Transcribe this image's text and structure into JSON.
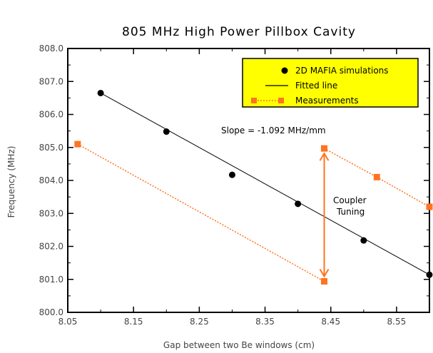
{
  "chart_data": {
    "type": "line",
    "title": "805 MHz High Power Pillbox Cavity",
    "xlabel": "Gap between two Be windows (cm)",
    "ylabel": "Frequency (MHz)",
    "xlim": [
      8.05,
      8.6
    ],
    "ylim": [
      800.0,
      808.0
    ],
    "xticks": [
      8.05,
      8.15,
      8.25,
      8.35,
      8.45,
      8.55
    ],
    "xtick_labels": [
      "8.05",
      "8.15",
      "8.25",
      "8.35",
      "8.45",
      "8.55"
    ],
    "yticks": [
      800,
      801,
      802,
      803,
      804,
      805,
      806,
      807,
      808
    ],
    "ytick_labels": [
      "800.0",
      "801.0",
      "802.0",
      "803.0",
      "804.0",
      "805.0",
      "806.0",
      "807.0",
      "808.0"
    ],
    "grid": false,
    "legend_position": "top-right",
    "series": [
      {
        "name": "2D MAFIA simulations",
        "marker": "circle",
        "color": "#000000",
        "x": [
          8.1,
          8.2,
          8.3,
          8.4,
          8.5,
          8.6
        ],
        "y": [
          806.65,
          805.48,
          804.17,
          803.29,
          802.18,
          801.14
        ]
      },
      {
        "name": "Fitted line",
        "style": "solid",
        "color": "#000000",
        "x": [
          8.1,
          8.6
        ],
        "y": [
          806.65,
          801.14
        ]
      },
      {
        "name": "Measurements",
        "marker": "square",
        "style": "dotted",
        "color": "#ff7420",
        "segments": [
          {
            "x": [
              8.065,
              8.44
            ],
            "y": [
              805.1,
              800.94
            ]
          },
          {
            "x": [
              8.44,
              8.52,
              8.6
            ],
            "y": [
              804.97,
              804.1,
              803.2
            ]
          }
        ]
      }
    ],
    "annotations": {
      "slope": "Slope = -1.092 MHz/mm",
      "tuning_line1": "Coupler",
      "tuning_line2": "Tuning",
      "arrow": {
        "x": 8.44,
        "y_from": 800.94,
        "y_to": 804.97,
        "color": "#ff7420"
      }
    },
    "colors": {
      "legend_bg": "#ffff00",
      "measurement": "#ff7420",
      "simulation": "#000000"
    }
  }
}
